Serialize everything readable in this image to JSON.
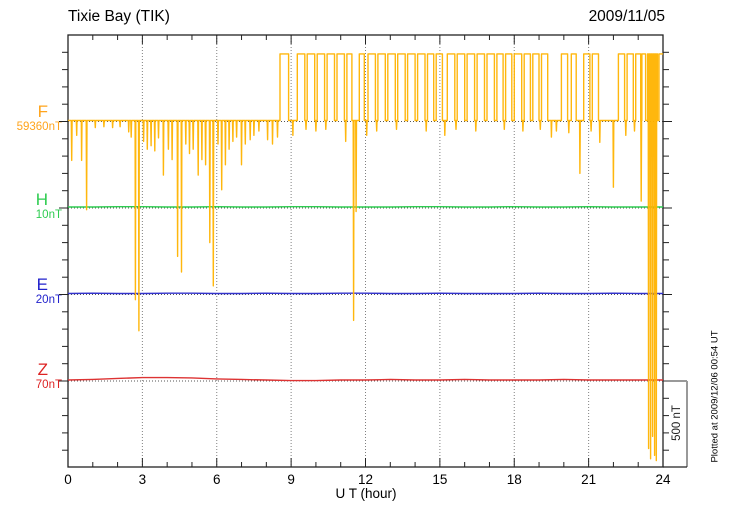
{
  "header": {
    "title": "Tixie Bay (TIK)",
    "date": "2009/11/05"
  },
  "chart_data": {
    "type": "line",
    "title": "Tixie Bay (TIK)",
    "date": "2009/11/05",
    "xlabel": "U T (hour)",
    "x_range": [
      0,
      24
    ],
    "x_major_ticks": [
      0,
      3,
      6,
      9,
      12,
      15,
      18,
      21,
      24
    ],
    "x_minor_step": 1,
    "y_tick_interval_nT": 100,
    "baseline_separation_nT": 500,
    "grid": "dotted-vertical-every-3h-and-dotted-baselines",
    "scale_bar": {
      "label": "500 nT",
      "span_nT": 500
    },
    "plotted_note": "Plotted at 2009/12/06 00:54 UT",
    "frame_color": "#222222",
    "grid_color": "#808080",
    "series": [
      {
        "id": "F",
        "label": "F",
        "baseline_label": "59360nT",
        "baseline_nT": 59360,
        "color": "#FFB300",
        "label_color": "#FFA41C",
        "high_level_nT": 385,
        "high_blocks": [
          [
            8.55,
            8.9
          ],
          [
            9.25,
            9.55
          ],
          [
            9.65,
            9.95
          ],
          [
            10.05,
            10.35
          ],
          [
            10.45,
            10.75
          ],
          [
            10.85,
            11.15
          ],
          [
            11.25,
            11.45
          ],
          [
            11.75,
            11.95
          ],
          [
            12.1,
            12.4
          ],
          [
            12.5,
            12.8
          ],
          [
            12.9,
            13.2
          ],
          [
            13.3,
            13.6
          ],
          [
            13.7,
            14.0
          ],
          [
            14.1,
            14.4
          ],
          [
            14.5,
            14.75
          ],
          [
            14.85,
            15.1
          ],
          [
            15.3,
            15.6
          ],
          [
            15.7,
            16.0
          ],
          [
            16.1,
            16.4
          ],
          [
            16.5,
            16.8
          ],
          [
            16.9,
            17.2
          ],
          [
            17.3,
            17.55
          ],
          [
            17.65,
            17.9
          ],
          [
            18.0,
            18.3
          ],
          [
            18.4,
            18.65
          ],
          [
            18.75,
            19.0
          ],
          [
            19.1,
            19.35
          ],
          [
            19.9,
            20.15
          ],
          [
            20.3,
            20.5
          ],
          [
            20.8,
            21.05
          ],
          [
            21.15,
            21.4
          ],
          [
            22.2,
            22.45
          ],
          [
            22.55,
            22.8
          ],
          [
            22.9,
            23.1
          ],
          [
            23.15,
            23.3
          ],
          [
            23.38,
            23.78
          ],
          [
            23.84,
            24.0
          ]
        ],
        "spikes_nT": [
          [
            0.15,
            225
          ],
          [
            0.35,
            80
          ],
          [
            0.55,
            225
          ],
          [
            0.75,
            510
          ],
          [
            1.1,
            35
          ],
          [
            1.45,
            30
          ],
          [
            1.8,
            35
          ],
          [
            2.1,
            30
          ],
          [
            2.45,
            60
          ],
          [
            2.55,
            90
          ],
          [
            2.72,
            1030
          ],
          [
            2.86,
            1210
          ],
          [
            3.05,
            115
          ],
          [
            3.2,
            160
          ],
          [
            3.35,
            140
          ],
          [
            3.5,
            170
          ],
          [
            3.65,
            95
          ],
          [
            3.85,
            310
          ],
          [
            4.05,
            160
          ],
          [
            4.2,
            220
          ],
          [
            4.42,
            780
          ],
          [
            4.58,
            870
          ],
          [
            4.75,
            130
          ],
          [
            4.9,
            185
          ],
          [
            5.05,
            160
          ],
          [
            5.25,
            310
          ],
          [
            5.4,
            220
          ],
          [
            5.55,
            250
          ],
          [
            5.72,
            700
          ],
          [
            5.86,
            950
          ],
          [
            6.05,
            130
          ],
          [
            6.2,
            395
          ],
          [
            6.35,
            250
          ],
          [
            6.5,
            160
          ],
          [
            6.65,
            115
          ],
          [
            6.8,
            90
          ],
          [
            7.0,
            250
          ],
          [
            7.15,
            130
          ],
          [
            7.35,
            105
          ],
          [
            7.5,
            80
          ],
          [
            7.7,
            55
          ],
          [
            8.05,
            105
          ],
          [
            8.25,
            130
          ],
          [
            8.45,
            90
          ],
          [
            9.07,
            80
          ],
          [
            9.6,
            45
          ],
          [
            10.0,
            55
          ],
          [
            10.4,
            45
          ],
          [
            11.2,
            115
          ],
          [
            11.52,
            1150
          ],
          [
            11.62,
            520
          ],
          [
            12.05,
            80
          ],
          [
            12.45,
            55
          ],
          [
            13.25,
            45
          ],
          [
            14.45,
            55
          ],
          [
            15.2,
            80
          ],
          [
            15.65,
            45
          ],
          [
            16.45,
            55
          ],
          [
            17.6,
            45
          ],
          [
            18.35,
            55
          ],
          [
            19.05,
            45
          ],
          [
            19.5,
            90
          ],
          [
            19.7,
            55
          ],
          [
            20.2,
            65
          ],
          [
            20.65,
            300
          ],
          [
            21.1,
            55
          ],
          [
            21.45,
            120
          ],
          [
            22.0,
            380
          ],
          [
            22.5,
            80
          ],
          [
            22.85,
            55
          ],
          [
            23.12,
            460
          ],
          [
            23.42,
            1890
          ],
          [
            23.5,
            1950
          ],
          [
            23.58,
            1820
          ],
          [
            23.66,
            1930
          ],
          [
            23.73,
            1960
          ]
        ]
      },
      {
        "id": "H",
        "label": "H",
        "baseline_label": "10nT",
        "baseline_nT": 10,
        "color": "#2ECC50",
        "label_color": "#2ECC50",
        "offsets_nT": [
          0,
          0,
          2,
          2,
          0,
          0,
          2,
          0,
          0,
          2,
          2,
          0,
          0,
          0,
          2,
          2,
          0,
          0,
          2,
          0,
          0,
          2,
          0,
          0,
          0
        ]
      },
      {
        "id": "E",
        "label": "E",
        "baseline_label": "20nT",
        "baseline_nT": 20,
        "color": "#3333CC",
        "label_color": "#2222CC",
        "offsets_nT": [
          0,
          2,
          0,
          0,
          2,
          2,
          0,
          0,
          2,
          0,
          0,
          2,
          2,
          0,
          0,
          2,
          0,
          0,
          0,
          2,
          0,
          0,
          2,
          0,
          0
        ]
      },
      {
        "id": "Z",
        "label": "Z",
        "baseline_label": "70nT",
        "baseline_nT": 70,
        "color": "#DD3333",
        "label_color": "#DD2222",
        "offsets_nT": [
          0,
          3,
          9,
          14,
          14,
          12,
          6,
          3,
          0,
          -3,
          -3,
          0,
          0,
          3,
          0,
          0,
          3,
          0,
          0,
          0,
          3,
          0,
          0,
          0,
          0
        ]
      }
    ]
  }
}
